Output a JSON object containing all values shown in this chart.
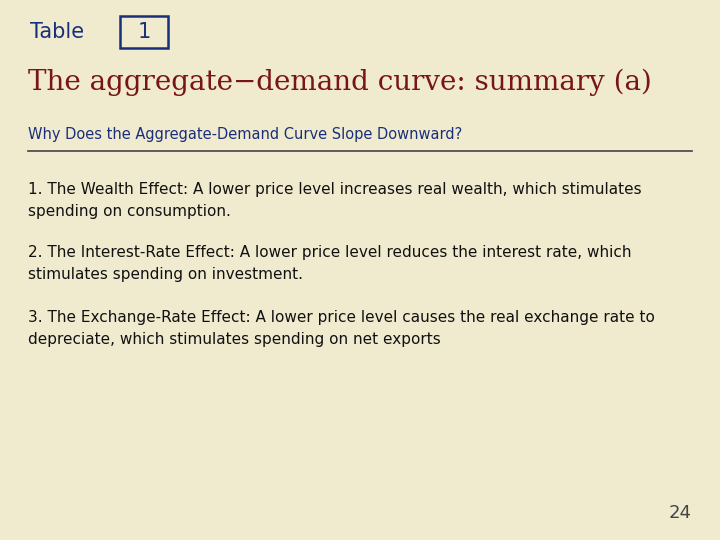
{
  "bg_color": "#f0ebcf",
  "table_label": "Table",
  "table_number": "1",
  "table_label_color": "#1a2f7a",
  "table_number_color": "#1a2f7a",
  "table_box_color": "#1a2f7a",
  "title": "The aggregate−demand curve: summary (a)",
  "title_color": "#7a1515",
  "section_header": "Why Does the Aggregate-Demand Curve Slope Downward?",
  "section_header_color": "#1a2f7a",
  "divider_color": "#444444",
  "items": [
    "1. The Wealth Effect: A lower price level increases real wealth, which stimulates\nspending on consumption.",
    "2. The Interest-Rate Effect: A lower price level reduces the interest rate, which\nstimulates spending on investment.",
    "3. The Exchange-Rate Effect: A lower price level causes the real exchange rate to\ndepreciate, which stimulates spending on net exports"
  ],
  "item_color": "#111111",
  "page_number": "24",
  "page_number_color": "#444444",
  "top_bar_color": "#d4c97a",
  "bottom_bar_color": "#d4c97a"
}
